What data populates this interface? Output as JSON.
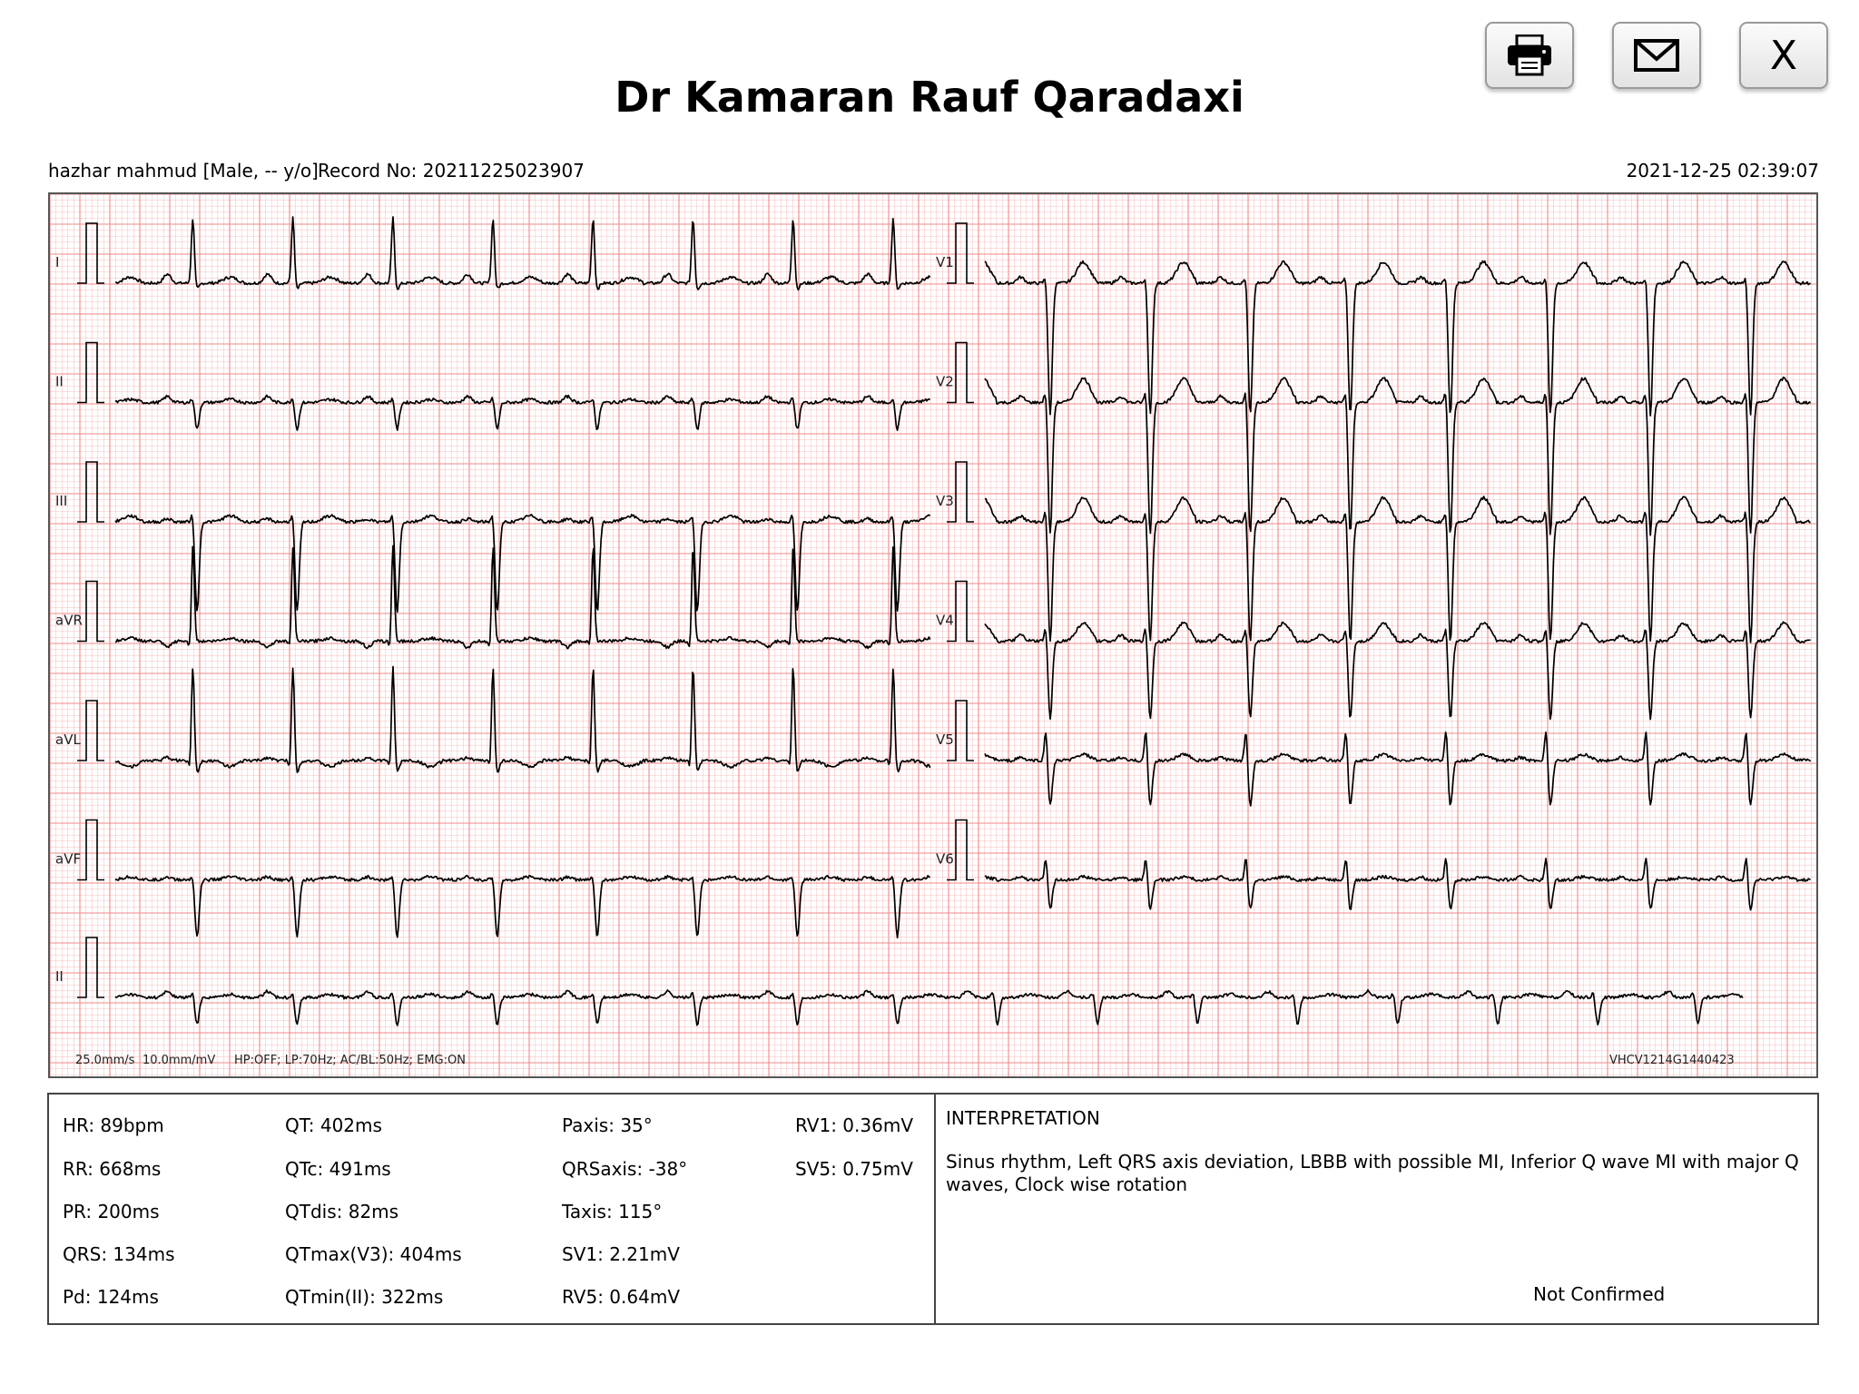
{
  "header": {
    "title": "Dr Kamaran Rauf Qaradaxi",
    "buttons": [
      {
        "name": "print",
        "icon": "printer-icon"
      },
      {
        "name": "email",
        "icon": "envelope-icon"
      },
      {
        "name": "close",
        "label": "X"
      }
    ]
  },
  "patient": {
    "name_line": "hazhar mahmud [Male, -- y/o]",
    "record": "Record No: 20211225023907",
    "datetime": "2021-12-25 02:39:07"
  },
  "ecg": {
    "leads_left": [
      "I",
      "II",
      "III",
      "aVR",
      "aVL",
      "aVF"
    ],
    "leads_right": [
      "V1",
      "V2",
      "V3",
      "V4",
      "V5",
      "V6"
    ],
    "rhythm_lead": "II",
    "speed": "25.0mm/s",
    "gain": "10.0mm/mV",
    "filters": "HP:OFF; LP:70Hz; AC/BL:50Hz; EMG:ON",
    "device_id": "VHCV1214G1440423",
    "grid_color": "#f08a8a",
    "trace_color": "#000000"
  },
  "measurements": {
    "col1": [
      "HR: 89bpm",
      "RR: 668ms",
      "PR: 200ms",
      "QRS: 134ms",
      "Pd: 124ms"
    ],
    "col2": [
      "QT: 402ms",
      "QTc: 491ms",
      "QTdis: 82ms",
      "QTmax(V3): 404ms",
      "QTmin(II): 322ms"
    ],
    "col3": [
      "Paxis: 35°",
      "QRSaxis: -38°",
      "Taxis: 115°",
      "SV1: 2.21mV",
      "RV5: 0.64mV"
    ],
    "col4": [
      "RV1: 0.36mV",
      "SV5: 0.75mV"
    ]
  },
  "interpretation": {
    "heading": "INTERPRETATION",
    "text": "Sinus rhythm, Left QRS axis deviation, LBBB with possible MI, Inferior Q wave MI with major Q waves, Clock wise rotation",
    "status": "Not Confirmed"
  }
}
